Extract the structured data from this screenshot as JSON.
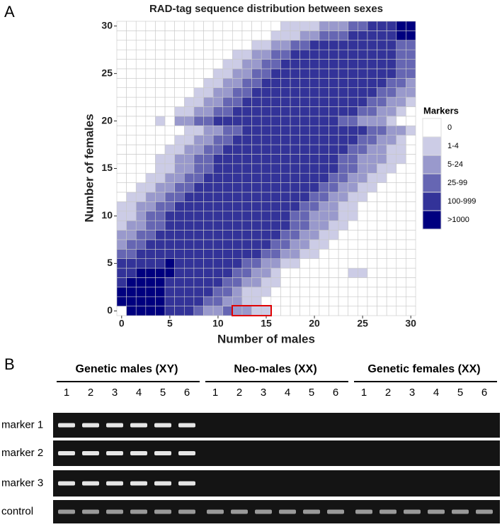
{
  "chart_data": {
    "type": "heatmap",
    "panel_label": "A",
    "title": "RAD-tag sequence distribution between sexes",
    "x_label": "Number of males",
    "y_label": "Number of females",
    "xlim": [
      -0.5,
      30.5
    ],
    "ylim": [
      -0.5,
      30.5
    ],
    "xticks": [
      0,
      5,
      10,
      15,
      20,
      25,
      30
    ],
    "yticks": [
      0,
      5,
      10,
      15,
      20,
      25,
      30
    ],
    "legend": "right",
    "legend_title": "Markers",
    "levels": [
      {
        "label": "0",
        "color": "#ffffff"
      },
      {
        "label": "1-4",
        "color": "#ccccE6"
      },
      {
        "label": "5-24",
        "color": "#9999cc"
      },
      {
        "label": "25-99",
        "color": "#6666b3"
      },
      {
        "label": "100-999",
        "color": "#333399"
      },
      {
        "label": ">1000",
        "color": "#00007f"
      }
    ],
    "values": [
      [
        0,
        5,
        5,
        5,
        5,
        4,
        4,
        4,
        3,
        2,
        2,
        3,
        2,
        2,
        1,
        1,
        0,
        0,
        0,
        0,
        0,
        0,
        0,
        0,
        0,
        0,
        0,
        0,
        0,
        0,
        0
      ],
      [
        5,
        5,
        5,
        5,
        5,
        4,
        4,
        4,
        4,
        3,
        3,
        2,
        2,
        1,
        1,
        0,
        0,
        0,
        0,
        0,
        0,
        0,
        0,
        0,
        0,
        0,
        0,
        0,
        0,
        0,
        0
      ],
      [
        5,
        5,
        5,
        5,
        5,
        4,
        4,
        4,
        4,
        4,
        3,
        3,
        2,
        1,
        1,
        1,
        0,
        0,
        0,
        0,
        0,
        0,
        0,
        0,
        0,
        0,
        0,
        0,
        0,
        0,
        0
      ],
      [
        4,
        5,
        5,
        5,
        5,
        4,
        4,
        4,
        4,
        4,
        4,
        3,
        3,
        2,
        2,
        1,
        1,
        0,
        0,
        0,
        0,
        0,
        0,
        0,
        0,
        0,
        0,
        0,
        0,
        0,
        0
      ],
      [
        4,
        4,
        5,
        5,
        5,
        5,
        4,
        4,
        4,
        4,
        4,
        4,
        3,
        3,
        2,
        2,
        1,
        0,
        0,
        0,
        0,
        0,
        0,
        0,
        1,
        1,
        0,
        0,
        0,
        0,
        0
      ],
      [
        4,
        4,
        4,
        4,
        4,
        5,
        4,
        4,
        4,
        4,
        4,
        4,
        4,
        3,
        3,
        2,
        2,
        1,
        1,
        0,
        0,
        0,
        0,
        0,
        0,
        0,
        0,
        0,
        0,
        0,
        0
      ],
      [
        3,
        3,
        4,
        4,
        4,
        4,
        4,
        4,
        4,
        4,
        4,
        4,
        4,
        4,
        4,
        3,
        3,
        2,
        2,
        1,
        1,
        0,
        0,
        0,
        0,
        0,
        0,
        0,
        0,
        0,
        0
      ],
      [
        2,
        3,
        3,
        4,
        4,
        4,
        4,
        4,
        4,
        4,
        4,
        4,
        4,
        4,
        4,
        4,
        3,
        3,
        2,
        2,
        1,
        1,
        0,
        0,
        0,
        0,
        0,
        0,
        0,
        0,
        0
      ],
      [
        2,
        2,
        3,
        3,
        4,
        4,
        4,
        4,
        4,
        4,
        4,
        4,
        4,
        4,
        4,
        4,
        4,
        3,
        3,
        2,
        2,
        1,
        1,
        0,
        0,
        0,
        0,
        0,
        0,
        0,
        0
      ],
      [
        1,
        2,
        2,
        3,
        3,
        4,
        4,
        4,
        4,
        4,
        4,
        4,
        4,
        4,
        4,
        4,
        4,
        4,
        3,
        3,
        2,
        2,
        1,
        1,
        0,
        0,
        0,
        0,
        0,
        0,
        0
      ],
      [
        1,
        1,
        2,
        3,
        3,
        4,
        4,
        4,
        4,
        4,
        4,
        4,
        4,
        4,
        4,
        4,
        4,
        4,
        3,
        3,
        2,
        2,
        2,
        1,
        1,
        0,
        0,
        0,
        0,
        0,
        0
      ],
      [
        1,
        1,
        2,
        2,
        3,
        3,
        4,
        4,
        4,
        4,
        4,
        4,
        4,
        4,
        4,
        4,
        4,
        4,
        4,
        3,
        3,
        2,
        2,
        1,
        1,
        0,
        0,
        0,
        0,
        0,
        0
      ],
      [
        0,
        1,
        1,
        2,
        2,
        3,
        3,
        4,
        4,
        4,
        4,
        4,
        4,
        4,
        4,
        4,
        4,
        4,
        4,
        4,
        3,
        3,
        2,
        2,
        1,
        1,
        0,
        0,
        0,
        0,
        0
      ],
      [
        0,
        0,
        1,
        1,
        2,
        2,
        3,
        3,
        4,
        4,
        4,
        4,
        4,
        4,
        4,
        4,
        4,
        4,
        4,
        4,
        4,
        3,
        3,
        2,
        2,
        1,
        1,
        0,
        0,
        0,
        0
      ],
      [
        0,
        0,
        0,
        1,
        1,
        2,
        2,
        3,
        3,
        4,
        4,
        4,
        4,
        4,
        4,
        4,
        4,
        4,
        4,
        4,
        4,
        4,
        3,
        3,
        2,
        2,
        1,
        1,
        0,
        0,
        0
      ],
      [
        0,
        0,
        0,
        0,
        1,
        1,
        2,
        2,
        3,
        3,
        4,
        4,
        4,
        4,
        4,
        4,
        4,
        4,
        4,
        4,
        4,
        4,
        4,
        3,
        3,
        2,
        2,
        1,
        1,
        0,
        0
      ],
      [
        0,
        0,
        0,
        0,
        1,
        1,
        2,
        2,
        3,
        3,
        4,
        4,
        4,
        4,
        4,
        4,
        4,
        4,
        4,
        4,
        4,
        4,
        4,
        3,
        3,
        2,
        2,
        2,
        1,
        1,
        0
      ],
      [
        0,
        0,
        0,
        0,
        0,
        1,
        1,
        2,
        2,
        3,
        3,
        4,
        4,
        4,
        4,
        4,
        4,
        4,
        4,
        4,
        4,
        4,
        4,
        4,
        3,
        3,
        2,
        2,
        1,
        1,
        0
      ],
      [
        0,
        0,
        0,
        0,
        0,
        0,
        1,
        1,
        2,
        2,
        3,
        3,
        4,
        4,
        4,
        4,
        4,
        4,
        4,
        4,
        4,
        4,
        4,
        4,
        4,
        3,
        3,
        2,
        2,
        1,
        0
      ],
      [
        0,
        0,
        0,
        0,
        0,
        0,
        0,
        1,
        1,
        2,
        2,
        3,
        3,
        4,
        4,
        4,
        4,
        4,
        4,
        4,
        4,
        4,
        4,
        4,
        4,
        4,
        3,
        3,
        2,
        2,
        1
      ],
      [
        0,
        0,
        0,
        0,
        1,
        0,
        2,
        2,
        3,
        3,
        4,
        4,
        4,
        4,
        4,
        4,
        4,
        4,
        4,
        4,
        4,
        4,
        4,
        3,
        3,
        2,
        2,
        2,
        1,
        0,
        0
      ],
      [
        0,
        0,
        0,
        0,
        0,
        0,
        1,
        1,
        2,
        2,
        3,
        3,
        4,
        4,
        4,
        4,
        4,
        4,
        4,
        4,
        4,
        4,
        4,
        4,
        4,
        3,
        3,
        2,
        2,
        1,
        0
      ],
      [
        0,
        0,
        0,
        0,
        0,
        0,
        0,
        1,
        1,
        2,
        2,
        3,
        3,
        4,
        4,
        4,
        4,
        4,
        4,
        4,
        4,
        4,
        4,
        4,
        4,
        4,
        3,
        3,
        2,
        2,
        1
      ],
      [
        0,
        0,
        0,
        0,
        0,
        0,
        0,
        0,
        1,
        1,
        2,
        2,
        3,
        3,
        4,
        4,
        4,
        4,
        4,
        4,
        4,
        4,
        4,
        4,
        4,
        4,
        4,
        3,
        3,
        2,
        2
      ],
      [
        0,
        0,
        0,
        0,
        0,
        0,
        0,
        0,
        0,
        1,
        1,
        2,
        2,
        3,
        3,
        4,
        4,
        4,
        4,
        4,
        4,
        4,
        4,
        4,
        4,
        4,
        4,
        4,
        3,
        3,
        2
      ],
      [
        0,
        0,
        0,
        0,
        0,
        0,
        0,
        0,
        0,
        0,
        1,
        1,
        2,
        2,
        3,
        3,
        4,
        4,
        4,
        4,
        4,
        4,
        4,
        4,
        4,
        4,
        4,
        4,
        4,
        3,
        3
      ],
      [
        0,
        0,
        0,
        0,
        0,
        0,
        0,
        0,
        0,
        0,
        0,
        1,
        1,
        2,
        2,
        3,
        3,
        4,
        4,
        4,
        4,
        4,
        4,
        4,
        4,
        4,
        4,
        4,
        4,
        3,
        3
      ],
      [
        0,
        0,
        0,
        0,
        0,
        0,
        0,
        0,
        0,
        0,
        0,
        0,
        1,
        1,
        2,
        2,
        3,
        3,
        4,
        4,
        4,
        4,
        4,
        4,
        4,
        4,
        4,
        4,
        4,
        3,
        3
      ],
      [
        0,
        0,
        0,
        0,
        0,
        0,
        0,
        0,
        0,
        0,
        0,
        0,
        0,
        0,
        1,
        1,
        2,
        2,
        3,
        3,
        4,
        4,
        4,
        4,
        4,
        4,
        4,
        4,
        4,
        3,
        3
      ],
      [
        0,
        0,
        0,
        0,
        0,
        0,
        0,
        0,
        0,
        0,
        0,
        0,
        0,
        0,
        0,
        0,
        1,
        1,
        1,
        2,
        2,
        3,
        3,
        3,
        4,
        4,
        4,
        4,
        4,
        5,
        5
      ],
      [
        0,
        0,
        0,
        0,
        0,
        0,
        0,
        0,
        0,
        0,
        0,
        0,
        0,
        0,
        0,
        0,
        0,
        1,
        1,
        1,
        1,
        2,
        2,
        2,
        3,
        3,
        4,
        4,
        4,
        5,
        5
      ]
    ]
  },
  "gel": {
    "panel_label": "B",
    "groups": [
      {
        "title": "Genetic males (XY)",
        "lanes": [
          "1",
          "2",
          "3",
          "4",
          "5",
          "6"
        ]
      },
      {
        "title": "Neo-males (XX)",
        "lanes": [
          "1",
          "2",
          "3",
          "4",
          "5",
          "6"
        ]
      },
      {
        "title": "Genetic females (XX)",
        "lanes": [
          "1",
          "2",
          "3",
          "4",
          "5",
          "6"
        ]
      }
    ],
    "rows": [
      {
        "label": "marker 1",
        "bands": [
          1,
          1,
          1,
          1,
          1,
          1,
          0,
          0,
          0,
          0,
          0,
          0,
          0,
          0,
          0,
          0,
          0,
          0
        ]
      },
      {
        "label": "marker 2",
        "bands": [
          1,
          1,
          1,
          1,
          1,
          1,
          0,
          0,
          0,
          0,
          0,
          0,
          0,
          0,
          0,
          0,
          0,
          0
        ]
      },
      {
        "label": "marker 3",
        "bands": [
          1,
          1,
          1,
          1,
          1,
          1,
          0,
          0,
          0,
          0,
          0,
          0,
          0,
          0,
          0,
          0,
          0,
          0
        ]
      },
      {
        "label": "control",
        "bands": [
          1,
          1,
          1,
          1,
          1,
          1,
          1,
          1,
          1,
          1,
          1,
          1,
          1,
          1,
          1,
          1,
          1,
          1
        ]
      }
    ]
  }
}
